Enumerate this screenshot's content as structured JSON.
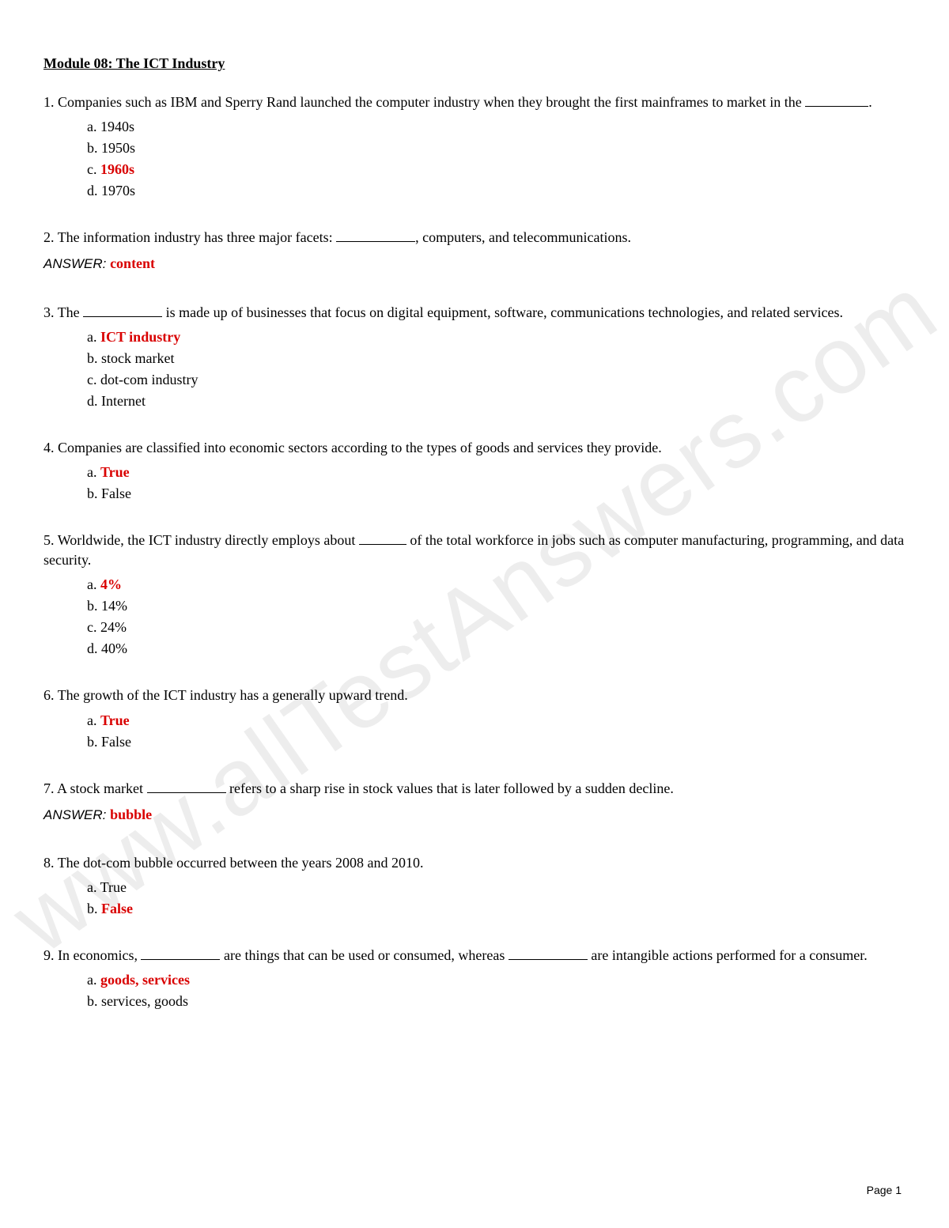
{
  "watermark": "www.allTestAnswers.com",
  "title": "Module 08: The ICT Industry",
  "page_label": "Page 1",
  "colors": {
    "correct": "#d90000",
    "text": "#000000",
    "watermark": "#dcdcdc",
    "background": "#ffffff"
  },
  "questions": [
    {
      "num": "1.",
      "text_before": "Companies such as IBM and Sperry Rand launched the computer industry when they brought the first mainframes to market in the ",
      "text_after": ".",
      "blank_width": 80,
      "options": [
        {
          "letter": "a.",
          "text": "1940s",
          "correct": false
        },
        {
          "letter": "b.",
          "text": "1950s",
          "correct": false
        },
        {
          "letter": "c.",
          "text": "1960s",
          "correct": true
        },
        {
          "letter": "d.",
          "text": "1970s",
          "correct": false
        }
      ]
    },
    {
      "num": "2.",
      "text_before": "The information industry has three major facets: ",
      "text_after": ", computers, and telecommunications.",
      "blank_width": 100,
      "answer_label": "ANSWER:",
      "answer_value": "content"
    },
    {
      "num": "3.",
      "text_before": "The ",
      "text_after": " is made up of businesses that focus on digital equipment, software, communications technologies, and related services.",
      "blank_width": 100,
      "options": [
        {
          "letter": "a.",
          "text": "ICT industry",
          "correct": true
        },
        {
          "letter": "b.",
          "text": "stock market",
          "correct": false
        },
        {
          "letter": "c.",
          "text": "dot-com industry",
          "correct": false
        },
        {
          "letter": "d.",
          "text": "Internet",
          "correct": false
        }
      ]
    },
    {
      "num": "4.",
      "text_full": "Companies are classified into economic sectors according to the types of goods and services they provide.",
      "options": [
        {
          "letter": "a.",
          "text": "True",
          "correct": true
        },
        {
          "letter": "b.",
          "text": "False",
          "correct": false
        }
      ]
    },
    {
      "num": "5.",
      "text_before": "Worldwide, the ICT industry directly employs about ",
      "text_after": " of the total workforce in jobs such as computer manufacturing, programming, and data security.",
      "blank_width": 60,
      "options": [
        {
          "letter": "a.",
          "text": "4%",
          "correct": true
        },
        {
          "letter": "b.",
          "text": "14%",
          "correct": false
        },
        {
          "letter": "c.",
          "text": "24%",
          "correct": false
        },
        {
          "letter": "d.",
          "text": "40%",
          "correct": false
        }
      ]
    },
    {
      "num": "6.",
      "text_full": "The growth of the ICT industry has a generally upward trend.",
      "options": [
        {
          "letter": "a.",
          "text": "True",
          "correct": true
        },
        {
          "letter": "b.",
          "text": "False",
          "correct": false
        }
      ]
    },
    {
      "num": "7.",
      "text_before": "A stock market ",
      "text_after": " refers to a sharp rise in stock values that is later followed by a sudden decline.",
      "blank_width": 100,
      "answer_label": "ANSWER:",
      "answer_value": "bubble"
    },
    {
      "num": "8.",
      "text_full": "The dot-com bubble occurred between the years 2008 and 2010.",
      "options": [
        {
          "letter": "a.",
          "text": "True",
          "correct": false
        },
        {
          "letter": "b.",
          "text": "False",
          "correct": true
        }
      ]
    },
    {
      "num": "9.",
      "text_before": "In economics, ",
      "text_mid": " are things that can be used or consumed, whereas ",
      "text_after": " are intangible actions performed for a consumer.",
      "blank_width": 100,
      "options": [
        {
          "letter": "a.",
          "text": "goods, services",
          "correct": true
        },
        {
          "letter": "b.",
          "text": "services, goods",
          "correct": false
        }
      ]
    }
  ]
}
